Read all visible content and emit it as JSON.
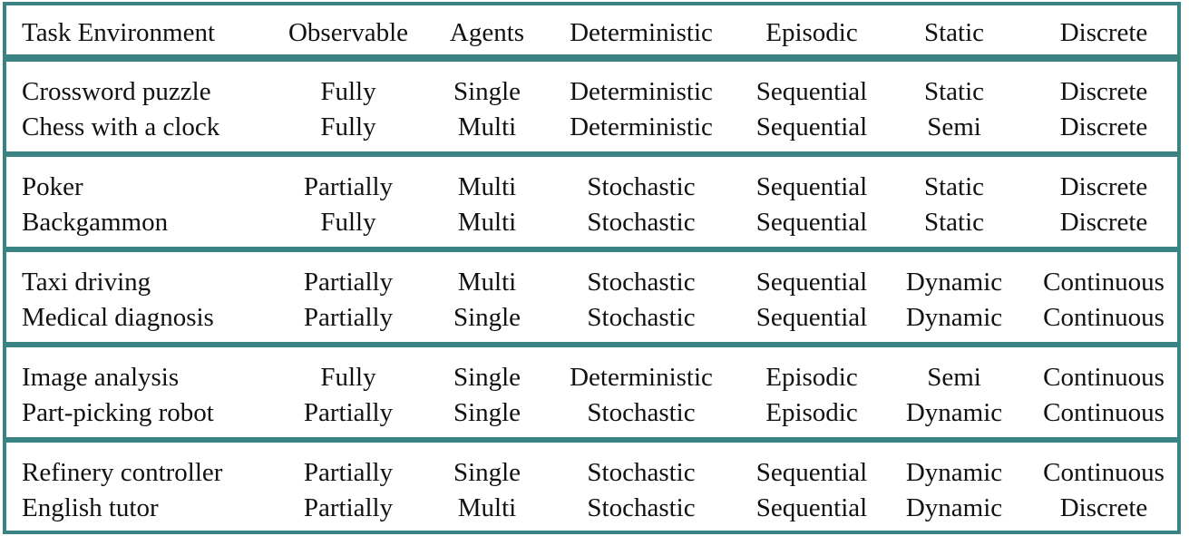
{
  "headers": [
    "Task Environment",
    "Observable",
    "Agents",
    "Deterministic",
    "Episodic",
    "Static",
    "Discrete"
  ],
  "groups": [
    {
      "rows": [
        [
          "Crossword puzzle",
          "Fully",
          "Single",
          "Deterministic",
          "Sequential",
          "Static",
          "Discrete"
        ],
        [
          "Chess with a clock",
          "Fully",
          "Multi",
          "Deterministic",
          "Sequential",
          "Semi",
          "Discrete"
        ]
      ]
    },
    {
      "rows": [
        [
          "Poker",
          "Partially",
          "Multi",
          "Stochastic",
          "Sequential",
          "Static",
          "Discrete"
        ],
        [
          "Backgammon",
          "Fully",
          "Multi",
          "Stochastic",
          "Sequential",
          "Static",
          "Discrete"
        ]
      ]
    },
    {
      "rows": [
        [
          "Taxi driving",
          "Partially",
          "Multi",
          "Stochastic",
          "Sequential",
          "Dynamic",
          "Continuous"
        ],
        [
          "Medical diagnosis",
          "Partially",
          "Single",
          "Stochastic",
          "Sequential",
          "Dynamic",
          "Continuous"
        ]
      ]
    },
    {
      "rows": [
        [
          "Image analysis",
          "Fully",
          "Single",
          "Deterministic",
          "Episodic",
          "Semi",
          "Continuous"
        ],
        [
          "Part-picking robot",
          "Partially",
          "Single",
          "Stochastic",
          "Episodic",
          "Dynamic",
          "Continuous"
        ]
      ]
    },
    {
      "rows": [
        [
          "Refinery controller",
          "Partially",
          "Single",
          "Stochastic",
          "Sequential",
          "Dynamic",
          "Continuous"
        ],
        [
          "English tutor",
          "Partially",
          "Multi",
          "Stochastic",
          "Sequential",
          "Dynamic",
          "Discrete"
        ]
      ]
    }
  ],
  "colors": {
    "border": "#3b8283",
    "text": "#111111",
    "background": "#ffffff"
  }
}
